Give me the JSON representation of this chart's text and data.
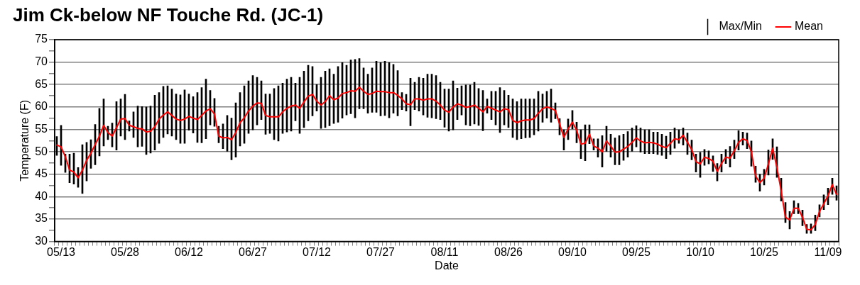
{
  "chart_data": {
    "type": "bar",
    "title": "Jim Ck-below NF Touche Rd. (JC-1)",
    "xlabel": "Date",
    "ylabel": "Temperature (F)",
    "categories": [
      null,
      "05/13",
      null,
      null,
      null,
      null,
      null,
      null,
      null,
      null,
      null,
      null,
      null,
      null,
      null,
      null,
      "05/28",
      null,
      null,
      null,
      null,
      null,
      null,
      null,
      null,
      null,
      null,
      null,
      null,
      null,
      null,
      "06/12",
      null,
      null,
      null,
      null,
      null,
      null,
      null,
      null,
      null,
      null,
      null,
      null,
      null,
      null,
      "06/27",
      null,
      null,
      null,
      null,
      null,
      null,
      null,
      null,
      null,
      null,
      null,
      null,
      null,
      null,
      "07/12",
      null,
      null,
      null,
      null,
      null,
      null,
      null,
      null,
      null,
      null,
      null,
      null,
      null,
      null,
      "07/27",
      null,
      null,
      null,
      null,
      null,
      null,
      null,
      null,
      null,
      null,
      null,
      null,
      null,
      null,
      "08/11",
      null,
      null,
      null,
      null,
      null,
      null,
      null,
      null,
      null,
      null,
      null,
      null,
      null,
      null,
      "08/26",
      null,
      null,
      null,
      null,
      null,
      null,
      null,
      null,
      null,
      null,
      null,
      null,
      null,
      null,
      "09/10",
      null,
      null,
      null,
      null,
      null,
      null,
      null,
      null,
      null,
      null,
      null,
      null,
      null,
      null,
      "09/25",
      null,
      null,
      null,
      null,
      null,
      null,
      null,
      null,
      null,
      null,
      null,
      null,
      null,
      null,
      "10/10",
      null,
      null,
      null,
      null,
      null,
      null,
      null,
      null,
      null,
      null,
      null,
      null,
      null,
      null,
      "10/25",
      null,
      null,
      null,
      null,
      null,
      null,
      null,
      null,
      null,
      null,
      null,
      null,
      null,
      null,
      "11/09",
      null,
      null
    ],
    "series": [
      {
        "name": "Max/Min",
        "color": "#000000",
        "base": [
          49.2,
          47.0,
          45.4,
          43.1,
          42.8,
          42.1,
          40.7,
          43.5,
          46.3,
          47.1,
          49.1,
          51.3,
          52.7,
          51.1,
          50.4,
          53.5,
          52.7,
          54.6,
          53.2,
          51.1,
          51.2,
          49.4,
          49.7,
          50.4,
          51.9,
          53.2,
          54.0,
          53.5,
          52.7,
          51.9,
          51.9,
          54.8,
          54.2,
          52.1,
          52.0,
          52.9,
          56.0,
          55.7,
          52.0,
          50.7,
          50.1,
          48.2,
          48.8,
          51.3,
          51.9,
          54.1,
          54.9,
          56.0,
          57.2,
          53.9,
          54.1,
          52.7,
          52.4,
          54.1,
          54.4,
          54.6,
          56.9,
          54.1,
          55.4,
          56.9,
          58.0,
          59.1,
          55.2,
          55.4,
          55.8,
          56.3,
          56.6,
          57.5,
          58.2,
          58.5,
          57.6,
          59.6,
          59.6,
          58.6,
          58.8,
          58.8,
          58.0,
          58.1,
          57.6,
          58.6,
          58.0,
          59.4,
          59.1,
          55.8,
          59.4,
          59.1,
          58.2,
          57.7,
          57.6,
          57.4,
          57.2,
          55.5,
          54.6,
          54.9,
          57.2,
          58.2,
          56.0,
          55.8,
          56.2,
          55.9,
          54.7,
          58.6,
          57.2,
          56.0,
          54.3,
          56.0,
          55.4,
          53.2,
          52.7,
          52.9,
          53.1,
          53.2,
          53.8,
          54.6,
          56.6,
          57.5,
          56.6,
          57.4,
          53.8,
          50.4,
          52.7,
          55.1,
          52.0,
          48.5,
          48.0,
          51.8,
          50.4,
          48.8,
          46.6,
          50.1,
          48.8,
          47.1,
          47.1,
          48.1,
          48.8,
          50.1,
          51.1,
          49.9,
          49.6,
          49.6,
          49.6,
          49.4,
          49.2,
          48.5,
          49.4,
          50.8,
          51.9,
          51.5,
          49.4,
          48.2,
          45.5,
          44.3,
          47.0,
          47.3,
          45.6,
          43.5,
          45.5,
          47.4,
          46.6,
          48.5,
          50.4,
          51.5,
          50.7,
          46.8,
          43.2,
          41.2,
          42.6,
          44.8,
          48.3,
          44.3,
          39.0,
          34.2,
          32.8,
          36.2,
          36.2,
          33.5,
          31.8,
          31.8,
          32.4,
          35.5,
          37.1,
          38.2,
          40.5,
          39.2
        ],
        "values": [
          4.2,
          8.9,
          4.1,
          6.4,
          6.9,
          4.4,
          10.9,
          8.6,
          6.4,
          9.0,
          10.6,
          10.5,
          3.0,
          5.3,
          10.8,
          8.3,
          10.1,
          2.3,
          5.7,
          9.1,
          8.9,
          10.6,
          10.5,
          12.2,
          11.3,
          11.4,
          10.7,
          10.5,
          10.2,
          10.8,
          11.9,
          8.1,
          8.1,
          11.1,
          12.3,
          13.3,
          7.7,
          6.2,
          3.7,
          5.5,
          8.0,
          9.3,
          12.1,
          11.9,
          12.8,
          11.7,
          12.1,
          10.6,
          8.6,
          9.0,
          8.8,
          11.4,
          12.3,
          11.2,
          11.8,
          12.0,
          8.4,
          12.5,
          12.6,
          12.4,
          11.0,
          5.9,
          11.4,
          12.6,
          12.7,
          11.0,
          12.4,
          12.4,
          11.1,
          12.0,
          13.0,
          11.2,
          9.1,
          8.7,
          9.9,
          11.4,
          11.9,
          12.1,
          12.3,
          10.9,
          10.1,
          3.8,
          3.7,
          10.6,
          6.1,
          7.5,
          8.2,
          9.6,
          9.7,
          9.6,
          8.3,
          8.5,
          9.4,
          10.9,
          7.0,
          6.5,
          8.9,
          9.1,
          9.3,
          8.2,
          9.0,
          3.2,
          6.3,
          7.5,
          10.0,
          7.7,
          7.2,
          8.6,
          8.5,
          8.9,
          8.7,
          8.6,
          8.0,
          8.9,
          6.3,
          6.0,
          7.4,
          3.5,
          3.6,
          4.5,
          4.6,
          4.1,
          4.6,
          6.4,
          8.0,
          4.2,
          2.5,
          4.1,
          7.0,
          5.6,
          5.1,
          6.0,
          6.5,
          5.8,
          5.7,
          5.2,
          4.7,
          5.4,
          5.3,
          5.3,
          4.8,
          5.0,
          4.7,
          5.0,
          5.0,
          4.5,
          3.0,
          3.8,
          4.8,
          4.4,
          4.0,
          5.6,
          3.5,
          2.9,
          3.5,
          3.9,
          4.0,
          3.1,
          4.6,
          4.1,
          4.3,
          2.9,
          3.5,
          5.6,
          3.6,
          3.8,
          3.5,
          5.6,
          4.6,
          6.8,
          5.1,
          4.5,
          3.9,
          2.9,
          2.3,
          3.5,
          2.0,
          2.1,
          3.5,
          2.7,
          3.3,
          3.7,
          3.6,
          3.2
        ]
      },
      {
        "name": "Mean",
        "type": "line",
        "color": "#ff0000",
        "values": [
          51.5,
          51.1,
          48.9,
          45.9,
          45.5,
          44.2,
          45.9,
          48.1,
          49.7,
          51.6,
          53.5,
          55.9,
          54.3,
          53.5,
          55.4,
          57.3,
          57.4,
          55.9,
          55.6,
          55.2,
          55.1,
          54.4,
          54.6,
          55.6,
          57.3,
          58.2,
          58.9,
          58.1,
          57.3,
          57.0,
          57.3,
          57.9,
          57.5,
          57.2,
          58.1,
          59.1,
          59.6,
          58.4,
          53.5,
          53.1,
          53.2,
          52.7,
          54.3,
          56.5,
          57.6,
          59.1,
          60.2,
          60.9,
          60.8,
          58.1,
          57.8,
          57.8,
          57.8,
          58.9,
          59.7,
          60.2,
          60.4,
          59.7,
          61.1,
          62.4,
          62.8,
          61.3,
          60.4,
          61.2,
          62.5,
          61.6,
          62.0,
          63.0,
          63.2,
          63.6,
          63.5,
          64.4,
          63.5,
          62.8,
          63.0,
          63.5,
          63.4,
          63.4,
          63.2,
          63.2,
          62.6,
          61.8,
          60.7,
          60.5,
          61.8,
          61.8,
          61.5,
          61.8,
          61.8,
          61.3,
          60.4,
          59.3,
          58.8,
          60.0,
          60.7,
          60.4,
          59.9,
          60.1,
          60.4,
          59.7,
          58.9,
          60.1,
          59.7,
          59.3,
          58.9,
          59.6,
          59.4,
          57.0,
          56.5,
          56.9,
          57.1,
          57.1,
          57.4,
          58.6,
          59.6,
          60.0,
          59.7,
          59.2,
          56.2,
          53.2,
          55.1,
          56.6,
          54.8,
          51.7,
          51.9,
          53.9,
          51.3,
          50.8,
          50.0,
          52.4,
          51.3,
          49.9,
          50.0,
          50.6,
          51.2,
          52.1,
          53.1,
          52.4,
          52.0,
          52.1,
          52.0,
          51.7,
          51.2,
          50.9,
          51.9,
          52.9,
          52.7,
          53.7,
          52.1,
          50.5,
          47.8,
          47.3,
          48.8,
          48.5,
          47.9,
          45.6,
          47.4,
          48.8,
          48.6,
          50.2,
          52.1,
          52.9,
          52.5,
          50.0,
          44.6,
          43.1,
          44.1,
          47.3,
          50.8,
          46.5,
          41.3,
          35.4,
          34.8,
          37.4,
          37.4,
          35.4,
          32.7,
          32.6,
          33.8,
          36.7,
          38.4,
          40.2,
          42.7,
          40.5
        ]
      }
    ],
    "ylim": [
      30,
      75
    ],
    "yticks": [
      30,
      {
        "value": 32.5,
        "label": null
      },
      35,
      {
        "value": 37.5,
        "label": null
      },
      40,
      {
        "value": 42.5,
        "label": null
      },
      45,
      {
        "value": 47.5,
        "label": null
      },
      50,
      {
        "value": 52.5,
        "label": null
      },
      55,
      {
        "value": 57.5,
        "label": null
      },
      60,
      {
        "value": 62.5,
        "label": null
      },
      65,
      {
        "value": 67.5,
        "label": null
      },
      70,
      {
        "value": 72.5,
        "label": null
      },
      75
    ],
    "grid": "y",
    "legend": "top right"
  }
}
